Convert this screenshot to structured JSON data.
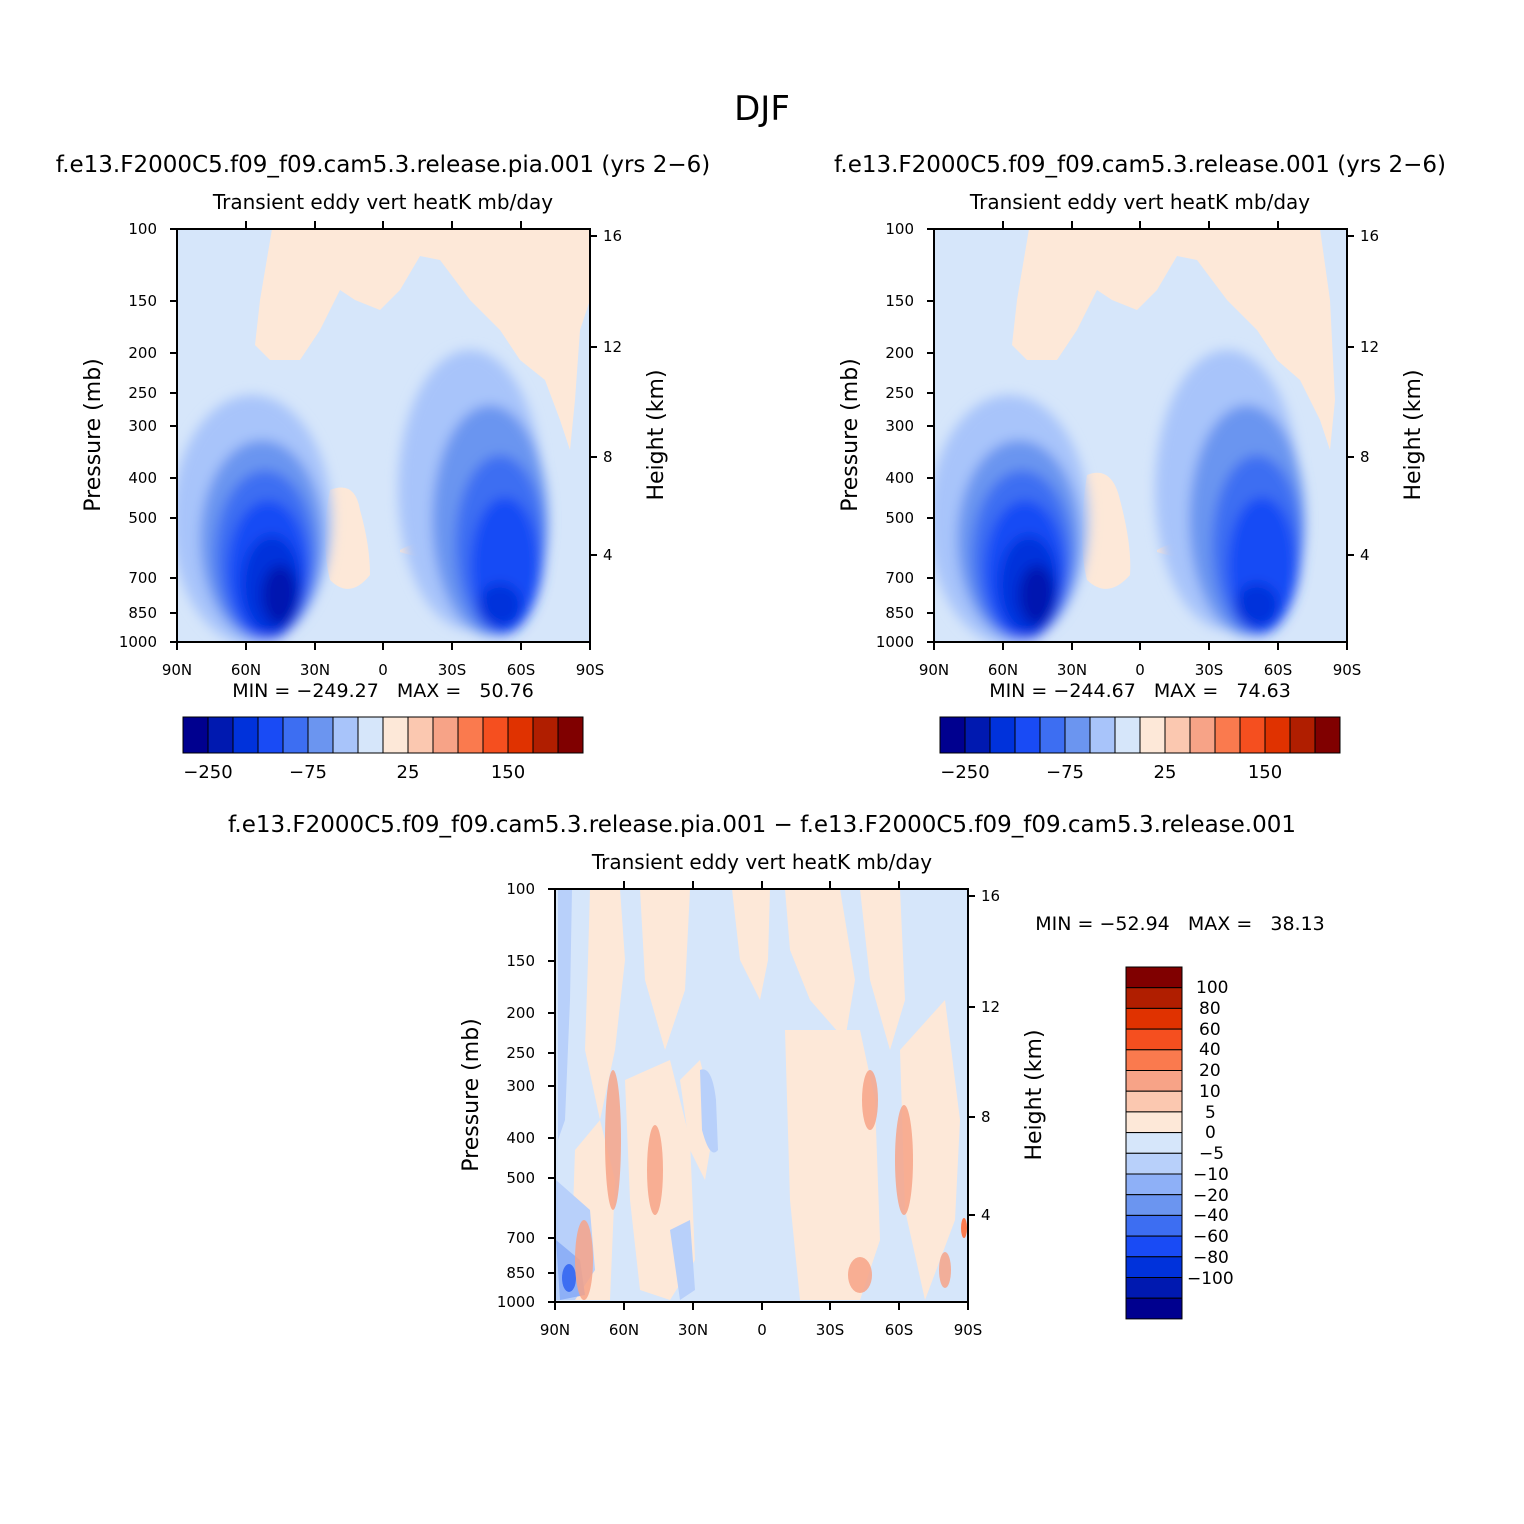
{
  "page_title": "DJF",
  "colors": {
    "div14": [
      "#00008f",
      "#0019b0",
      "#0032db",
      "#194bf5",
      "#3d6ef2",
      "#6b95f0",
      "#a8c4fa",
      "#d6e6fa",
      "#fde8d8",
      "#fbc8b0",
      "#f7a387",
      "#fa7a4e",
      "#f54f1f",
      "#e03200",
      "#b01e00",
      "#800000"
    ],
    "div16": [
      "#00008f",
      "#0019b0",
      "#0032db",
      "#194bf5",
      "#3d6ef2",
      "#6b95f0",
      "#8eb0f7",
      "#b8d0fa",
      "#d6e6fa",
      "#fde8d8",
      "#fbc8b0",
      "#f7a387",
      "#fa7a4e",
      "#f54f1f",
      "#e03200",
      "#b01e00",
      "#800000"
    ]
  },
  "chart_data": [
    {
      "type": "heatmap",
      "title": "f.e13.F2000C5.f09_f09.cam5.3.release.pia.001 (yrs 2−6)",
      "subtitle": "Transient eddy vert heatK mb/day",
      "xlabel": "",
      "ylabel": "Pressure (mb)",
      "ylabel_right": "Height (km)",
      "x_ticks": [
        "90N",
        "60N",
        "30N",
        "0",
        "30S",
        "60S",
        "90S"
      ],
      "y_ticks": [
        "100",
        "150",
        "200",
        "250",
        "300",
        "400",
        "500",
        "700",
        "850",
        "1000"
      ],
      "y_right_ticks": [
        "16",
        "12",
        "8",
        "4"
      ],
      "stats_text": "MIN = −249.27   MAX =   50.76",
      "min": -249.27,
      "max": 50.76,
      "colorbar_labels": [
        "−250",
        "−75",
        "25",
        "150"
      ],
      "features": [
        {
          "lat": 48,
          "p": 650,
          "value": -200
        },
        {
          "lat": -52,
          "p": 650,
          "value": -150
        },
        {
          "lat": 20,
          "p": 580,
          "value": 10
        },
        {
          "lat": -5,
          "p": 150,
          "value": 5
        }
      ]
    },
    {
      "type": "heatmap",
      "title": "f.e13.F2000C5.f09_f09.cam5.3.release.001 (yrs 2−6)",
      "subtitle": "Transient eddy vert heatK mb/day",
      "xlabel": "",
      "ylabel": "Pressure (mb)",
      "ylabel_right": "Height (km)",
      "x_ticks": [
        "90N",
        "60N",
        "30N",
        "0",
        "30S",
        "60S",
        "90S"
      ],
      "y_ticks": [
        "100",
        "150",
        "200",
        "250",
        "300",
        "400",
        "500",
        "700",
        "850",
        "1000"
      ],
      "y_right_ticks": [
        "16",
        "12",
        "8",
        "4"
      ],
      "stats_text": "MIN = −244.67   MAX =   74.63",
      "min": -244.67,
      "max": 74.63,
      "colorbar_labels": [
        "−250",
        "−75",
        "25",
        "150"
      ],
      "features": [
        {
          "lat": 48,
          "p": 650,
          "value": -200
        },
        {
          "lat": -52,
          "p": 650,
          "value": -150
        },
        {
          "lat": 20,
          "p": 580,
          "value": 10
        },
        {
          "lat": -5,
          "p": 150,
          "value": 5
        }
      ]
    },
    {
      "type": "heatmap",
      "title": "f.e13.F2000C5.f09_f09.cam5.3.release.pia.001 − f.e13.F2000C5.f09_f09.cam5.3.release.001",
      "subtitle": "Transient eddy vert heatK mb/day",
      "xlabel": "",
      "ylabel": "Pressure (mb)",
      "ylabel_right": "Height (km)",
      "x_ticks": [
        "90N",
        "60N",
        "30N",
        "0",
        "30S",
        "60S",
        "90S"
      ],
      "y_ticks": [
        "100",
        "150",
        "200",
        "250",
        "300",
        "400",
        "500",
        "700",
        "850",
        "1000"
      ],
      "y_right_ticks": [
        "16",
        "12",
        "8",
        "4"
      ],
      "stats_text": "MIN = −52.94   MAX =   38.13",
      "min": -52.94,
      "max": 38.13,
      "colorbar_labels": [
        "100",
        "80",
        "60",
        "40",
        "20",
        "10",
        "5",
        "0",
        "−5",
        "−10",
        "−20",
        "−40",
        "−60",
        "−80",
        "−100"
      ]
    }
  ]
}
